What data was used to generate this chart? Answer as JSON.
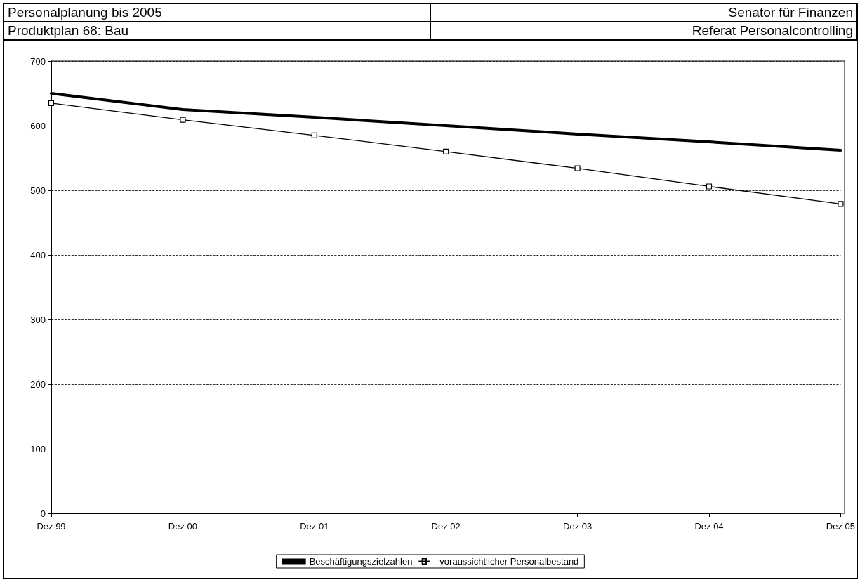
{
  "chart_data": {
    "type": "line",
    "title": "Personalplanung bis 2005",
    "subtitle": "Produktplan 68: Bau",
    "annotations": [
      "Senator für Finanzen",
      "Referat Personalcontrolling"
    ],
    "categories": [
      "Dez 99",
      "Dez 00",
      "Dez 01",
      "Dez 02",
      "Dez 03",
      "Dez 04",
      "Dez 05"
    ],
    "ylim": [
      0,
      700
    ],
    "yticks": [
      0,
      100,
      200,
      300,
      400,
      500,
      600,
      700
    ],
    "series": [
      {
        "name": "Beschäftigungszielzahlen",
        "color": "#000000",
        "marker": "none",
        "values": [
          650,
          625,
          613,
          600,
          587,
          575,
          562
        ]
      },
      {
        "name": "voraussichtlicher Personalbestand",
        "color": "#000000",
        "marker": "square",
        "values": [
          635,
          609,
          585,
          560,
          534,
          506,
          479
        ]
      }
    ],
    "grid": "y",
    "legend": "bottom"
  }
}
